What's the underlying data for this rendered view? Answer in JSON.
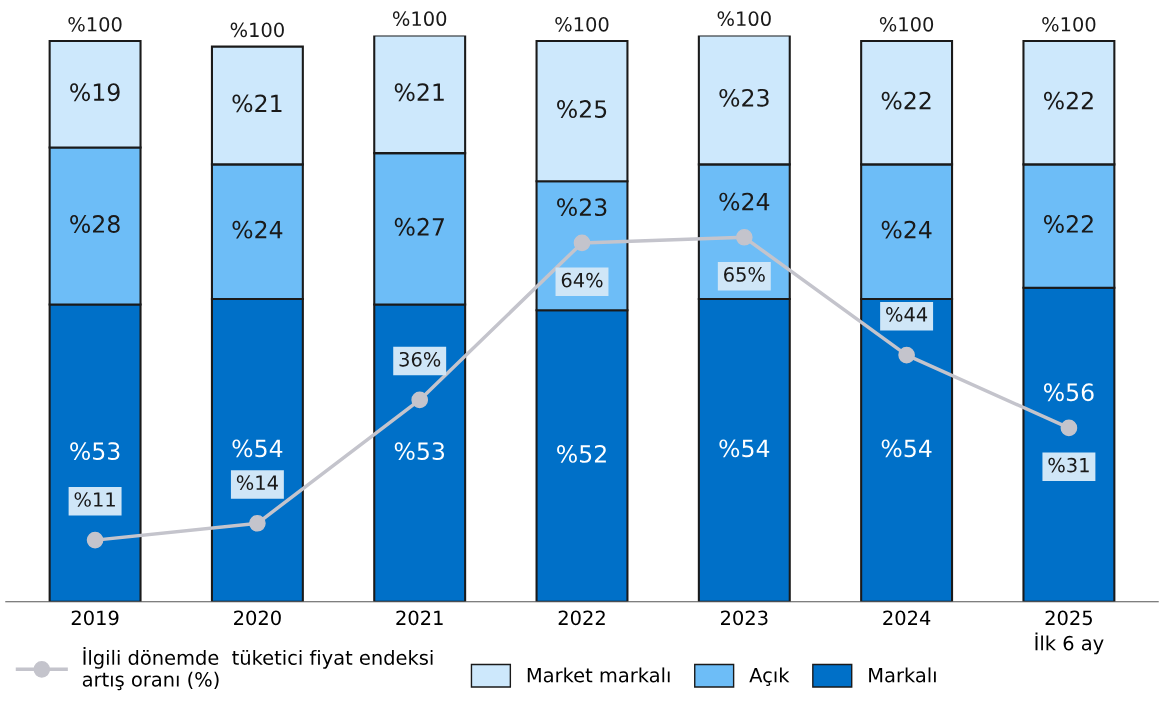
{
  "chart_data": {
    "type": "bar",
    "stacked": true,
    "categories": [
      "2019",
      "2020",
      "2021",
      "2022",
      "2023",
      "2024",
      "2025\nİlk 6 ay"
    ],
    "ylim": [
      0,
      101
    ],
    "tick_labels": "x",
    "grid": false,
    "legend": "bottom",
    "series": [
      {
        "name": "Markalı",
        "color": "#0070c8",
        "values": [
          53,
          54,
          53,
          52,
          54,
          54,
          56
        ],
        "value_labels": [
          "%53",
          "%54",
          "%53",
          "%52",
          "%54",
          "%54",
          "%56"
        ]
      },
      {
        "name": "Açık",
        "color": "#6dbdf7",
        "values": [
          28,
          24,
          27,
          23,
          24,
          24,
          22
        ],
        "value_labels": [
          "%28",
          "%24",
          "%27",
          "%23",
          "%24",
          "%24",
          "%22"
        ]
      },
      {
        "name": "Market markalı",
        "color": "#cde8fc",
        "values": [
          19,
          21,
          21,
          25,
          23,
          22,
          22
        ],
        "value_labels": [
          "%19",
          "%21",
          "%21",
          "%25",
          "%23",
          "%22",
          "%22"
        ]
      },
      {
        "name": "İlgili dönemde  tüketici fiyat endeksi\nartış oranı (%)",
        "type": "line",
        "color": "#c4c4cc",
        "marker": "circle",
        "line_style": "solid",
        "values": [
          11,
          14,
          36,
          64,
          65,
          44,
          31
        ],
        "value_labels": [
          "%11",
          "%14",
          "36%",
          "64%",
          "65%",
          "%44",
          "%31"
        ]
      }
    ],
    "totals": [
      "%100",
      "%100",
      "%100",
      "%100",
      "%100",
      "%100",
      "%100"
    ]
  }
}
